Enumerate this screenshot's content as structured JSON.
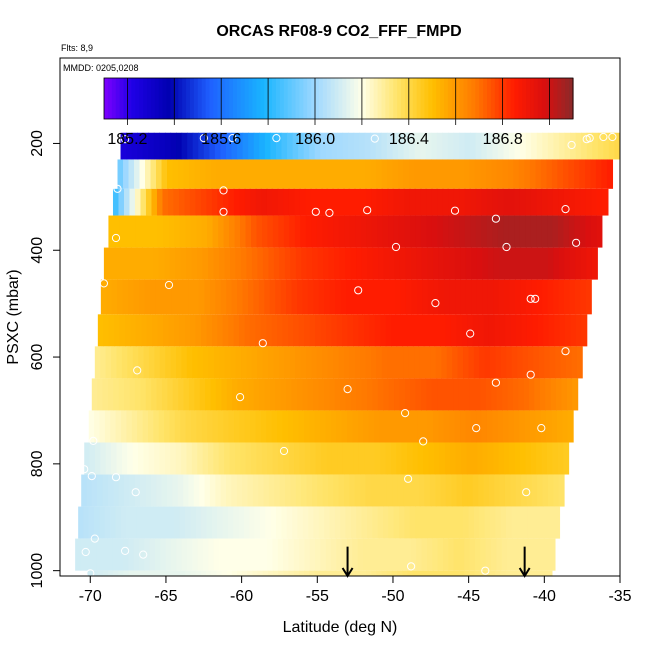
{
  "chart_data": {
    "type": "heatmap",
    "title": "ORCAS RF08-9 CO2_FFF_FMPD",
    "flights_label": "Flts: 8,9",
    "dates_label": "MMDD: 0205,0208",
    "xlabel": "Latitude (deg N)",
    "ylabel": "PSXC (mbar)",
    "xlim": [
      -72,
      -35
    ],
    "ylim": [
      1010,
      40
    ],
    "x_ticks": [
      -70,
      -65,
      -60,
      -55,
      -50,
      -45,
      -40,
      -35
    ],
    "y_ticks": [
      200,
      400,
      600,
      800,
      1000
    ],
    "colorbar": {
      "range": [
        185.1,
        187.1
      ],
      "ticks": [
        185.2,
        185.6,
        186.0,
        186.4,
        186.8
      ],
      "tick_labels": [
        "185.2",
        "185.6",
        "186.0",
        "186.4",
        "186.8"
      ],
      "stops": [
        {
          "v": 185.1,
          "c": "#7f00ff"
        },
        {
          "v": 185.22,
          "c": "#1f00e6"
        },
        {
          "v": 185.38,
          "c": "#0000b0"
        },
        {
          "v": 185.55,
          "c": "#1f5fff"
        },
        {
          "v": 185.78,
          "c": "#19b5ff"
        },
        {
          "v": 186.0,
          "c": "#9fd8ff"
        },
        {
          "v": 186.2,
          "c": "#ffffe8"
        },
        {
          "v": 186.35,
          "c": "#ffe46a"
        },
        {
          "v": 186.5,
          "c": "#ffbf00"
        },
        {
          "v": 186.68,
          "c": "#ff7a00"
        },
        {
          "v": 186.85,
          "c": "#ff1c00"
        },
        {
          "v": 186.98,
          "c": "#d90f0f"
        },
        {
          "v": 187.1,
          "c": "#8b2a2a"
        }
      ]
    },
    "layers": [
      {
        "p_top": 180,
        "p_bot": 230,
        "lat_start": -68,
        "lat_end": -35,
        "values": [
          185.25,
          185.35,
          185.55,
          185.8,
          186.0,
          186.05,
          186.15,
          186.1,
          186.2,
          186.3,
          186.4
        ]
      },
      {
        "p_top": 230,
        "p_bot": 285,
        "lat_start": -68.2,
        "lat_end": -35.5,
        "values": [
          185.9,
          186.5,
          186.55,
          186.55,
          186.55,
          186.55,
          186.6,
          186.6,
          186.65,
          186.75,
          186.85
        ]
      },
      {
        "p_top": 285,
        "p_bot": 335,
        "lat_start": -68.5,
        "lat_end": -35.8,
        "values": [
          185.8,
          186.7,
          186.8,
          186.9,
          186.85,
          186.85,
          186.9,
          186.9,
          186.95,
          186.9,
          186.85
        ]
      },
      {
        "p_top": 335,
        "p_bot": 395,
        "lat_start": -68.8,
        "lat_end": -36.2,
        "values": [
          186.5,
          186.5,
          186.55,
          186.75,
          186.85,
          186.9,
          186.95,
          187.0,
          187.05,
          187.05,
          186.95
        ]
      },
      {
        "p_top": 395,
        "p_bot": 455,
        "lat_start": -69.1,
        "lat_end": -36.5,
        "values": [
          186.55,
          186.55,
          186.6,
          186.7,
          186.8,
          186.85,
          186.9,
          186.95,
          187.0,
          187.0,
          186.9
        ]
      },
      {
        "p_top": 455,
        "p_bot": 520,
        "lat_start": -69.3,
        "lat_end": -36.9,
        "values": [
          186.55,
          186.6,
          186.6,
          186.7,
          186.8,
          186.85,
          186.85,
          186.9,
          186.9,
          186.85,
          186.8
        ]
      },
      {
        "p_top": 520,
        "p_bot": 580,
        "lat_start": -69.5,
        "lat_end": -37.2,
        "values": [
          186.5,
          186.55,
          186.6,
          186.7,
          186.75,
          186.8,
          186.85,
          186.85,
          186.9,
          186.85,
          186.8
        ]
      },
      {
        "p_top": 580,
        "p_bot": 640,
        "lat_start": -69.7,
        "lat_end": -37.5,
        "values": [
          186.3,
          186.4,
          186.5,
          186.55,
          186.6,
          186.65,
          186.7,
          186.7,
          186.8,
          186.75,
          186.7
        ]
      },
      {
        "p_top": 640,
        "p_bot": 700,
        "lat_start": -69.9,
        "lat_end": -37.8,
        "values": [
          186.3,
          186.35,
          186.45,
          186.55,
          186.6,
          186.65,
          186.7,
          186.75,
          186.75,
          186.7,
          186.6
        ]
      },
      {
        "p_top": 700,
        "p_bot": 760,
        "lat_start": -70.1,
        "lat_end": -38.1,
        "values": [
          186.2,
          186.3,
          186.4,
          186.45,
          186.5,
          186.55,
          186.6,
          186.6,
          186.65,
          186.6,
          186.55
        ]
      },
      {
        "p_top": 760,
        "p_bot": 820,
        "lat_start": -70.4,
        "lat_end": -38.4,
        "values": [
          186.1,
          186.2,
          186.25,
          186.35,
          186.4,
          186.45,
          186.45,
          186.5,
          186.55,
          186.5,
          186.45
        ]
      },
      {
        "p_top": 820,
        "p_bot": 880,
        "lat_start": -70.6,
        "lat_end": -38.7,
        "values": [
          186.05,
          186.1,
          186.15,
          186.25,
          186.3,
          186.35,
          186.4,
          186.4,
          186.45,
          186.4,
          186.35
        ]
      },
      {
        "p_top": 880,
        "p_bot": 940,
        "lat_start": -70.8,
        "lat_end": -39.0,
        "values": [
          186.05,
          186.1,
          186.1,
          186.15,
          186.2,
          186.25,
          186.3,
          186.35,
          186.35,
          186.3,
          186.3
        ]
      },
      {
        "p_top": 940,
        "p_bot": 1000,
        "lat_start": -71.0,
        "lat_end": -39.3,
        "values": [
          186.1,
          186.1,
          186.15,
          186.2,
          186.2,
          186.25,
          186.3,
          186.3,
          186.35,
          186.3,
          186.3
        ]
      },
      {
        "p_top": 1000,
        "p_bot": 1010,
        "lat_start": -70.2,
        "lat_end": -39.5,
        "values": [
          186.1,
          186.15,
          186.15,
          186.2,
          186.25,
          186.3,
          186.3,
          186.35,
          186.35,
          186.3,
          186.3
        ]
      }
    ],
    "sample_points": [
      {
        "lat": -67.7,
        "p": 192
      },
      {
        "lat": -62.5,
        "p": 190
      },
      {
        "lat": -60.6,
        "p": 190
      },
      {
        "lat": -57.7,
        "p": 190
      },
      {
        "lat": -51.2,
        "p": 191
      },
      {
        "lat": -38.2,
        "p": 203
      },
      {
        "lat": -37.2,
        "p": 192
      },
      {
        "lat": -37.0,
        "p": 190
      },
      {
        "lat": -36.1,
        "p": 188
      },
      {
        "lat": -35.5,
        "p": 188
      },
      {
        "lat": -68.2,
        "p": 285
      },
      {
        "lat": -61.2,
        "p": 288
      },
      {
        "lat": -61.2,
        "p": 328
      },
      {
        "lat": -55.1,
        "p": 328
      },
      {
        "lat": -54.2,
        "p": 330
      },
      {
        "lat": -51.7,
        "p": 325
      },
      {
        "lat": -45.9,
        "p": 326
      },
      {
        "lat": -43.2,
        "p": 341
      },
      {
        "lat": -38.6,
        "p": 323
      },
      {
        "lat": -68.3,
        "p": 377
      },
      {
        "lat": -37.9,
        "p": 386
      },
      {
        "lat": -49.8,
        "p": 394
      },
      {
        "lat": -42.5,
        "p": 394
      },
      {
        "lat": -64.8,
        "p": 465
      },
      {
        "lat": -52.3,
        "p": 475
      },
      {
        "lat": -47.2,
        "p": 499
      },
      {
        "lat": -40.9,
        "p": 491
      },
      {
        "lat": -40.6,
        "p": 491
      },
      {
        "lat": -69.1,
        "p": 462
      },
      {
        "lat": -44.9,
        "p": 556
      },
      {
        "lat": -58.6,
        "p": 574
      },
      {
        "lat": -38.6,
        "p": 589
      },
      {
        "lat": -66.9,
        "p": 625
      },
      {
        "lat": -43.2,
        "p": 648
      },
      {
        "lat": -40.9,
        "p": 633
      },
      {
        "lat": -60.1,
        "p": 675
      },
      {
        "lat": -53.0,
        "p": 660
      },
      {
        "lat": -49.2,
        "p": 705
      },
      {
        "lat": -44.5,
        "p": 733
      },
      {
        "lat": -40.2,
        "p": 733
      },
      {
        "lat": -69.8,
        "p": 757
      },
      {
        "lat": -48.0,
        "p": 758
      },
      {
        "lat": -57.2,
        "p": 776
      },
      {
        "lat": -70.4,
        "p": 810
      },
      {
        "lat": -69.9,
        "p": 823
      },
      {
        "lat": -49.0,
        "p": 828
      },
      {
        "lat": -68.3,
        "p": 825
      },
      {
        "lat": -67.0,
        "p": 853
      },
      {
        "lat": -41.2,
        "p": 853
      },
      {
        "lat": -69.7,
        "p": 940
      },
      {
        "lat": -70.3,
        "p": 965
      },
      {
        "lat": -67.7,
        "p": 963
      },
      {
        "lat": -66.5,
        "p": 970
      },
      {
        "lat": -48.8,
        "p": 992
      },
      {
        "lat": -43.9,
        "p": 1000
      },
      {
        "lat": -70.0,
        "p": 1005
      }
    ],
    "arrows": [
      {
        "lat": -53.0,
        "p_start": 955,
        "p_end": 1010
      },
      {
        "lat": -41.3,
        "p_start": 955,
        "p_end": 1010
      }
    ]
  }
}
